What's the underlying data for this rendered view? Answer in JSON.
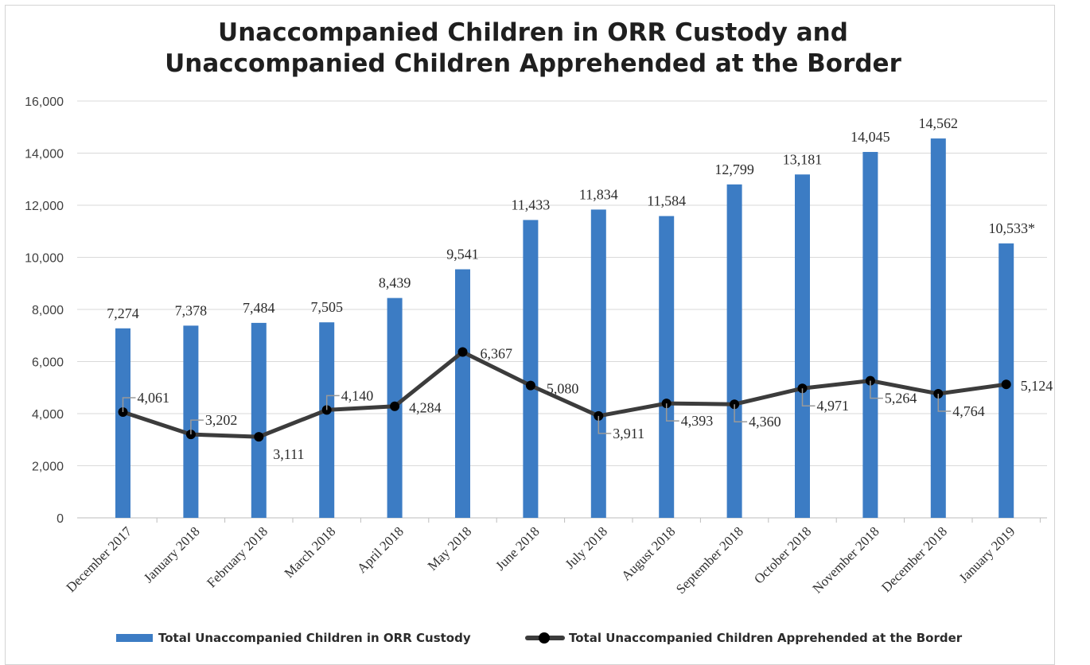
{
  "chart_data": {
    "type": "bar",
    "title_lines": [
      "Unaccompanied Children in ORR Custody and",
      "Unaccompanied Children Apprehended at the Border"
    ],
    "categories": [
      "December 2017",
      "January 2018",
      "February 2018",
      "March 2018",
      "April 2018",
      "May 2018",
      "June 2018",
      "July 2018",
      "August 2018",
      "September 2018",
      "October 2018",
      "November 2018",
      "December 2018",
      "January 2019"
    ],
    "ylim": [
      0,
      16000
    ],
    "yticks": [
      "0",
      "2,000",
      "4,000",
      "6,000",
      "8,000",
      "10,000",
      "12,000",
      "14,000",
      "16,000"
    ],
    "grid": true,
    "legend_position": "bottom",
    "series": [
      {
        "name": "Total Unaccompanied Children in ORR Custody",
        "type": "bar",
        "color": "#3c7cc4",
        "values": [
          7274,
          7378,
          7484,
          7505,
          8439,
          9541,
          11433,
          11834,
          11584,
          12799,
          13181,
          14045,
          14562,
          10533
        ],
        "labels": [
          "7,274",
          "7,378",
          "7,484",
          "7,505",
          "8,439",
          "9,541",
          "11,433",
          "11,834",
          "11,584",
          "12,799",
          "13,181",
          "14,045",
          "14,562",
          "10,533*"
        ]
      },
      {
        "name": "Total Unaccompanied Children Apprehended at the Border",
        "type": "line",
        "color": "#3c3c3c",
        "values": [
          4061,
          3202,
          3111,
          4140,
          4284,
          6367,
          5080,
          3911,
          4393,
          4360,
          4971,
          5264,
          4764,
          5124
        ],
        "labels": [
          "4,061",
          "3,202",
          "3,111",
          "4,140",
          "4,284",
          "6,367",
          "5,080",
          "3,911",
          "4,393",
          "4,360",
          "4,971",
          "5,264",
          "4,764",
          "5,124"
        ]
      }
    ]
  }
}
